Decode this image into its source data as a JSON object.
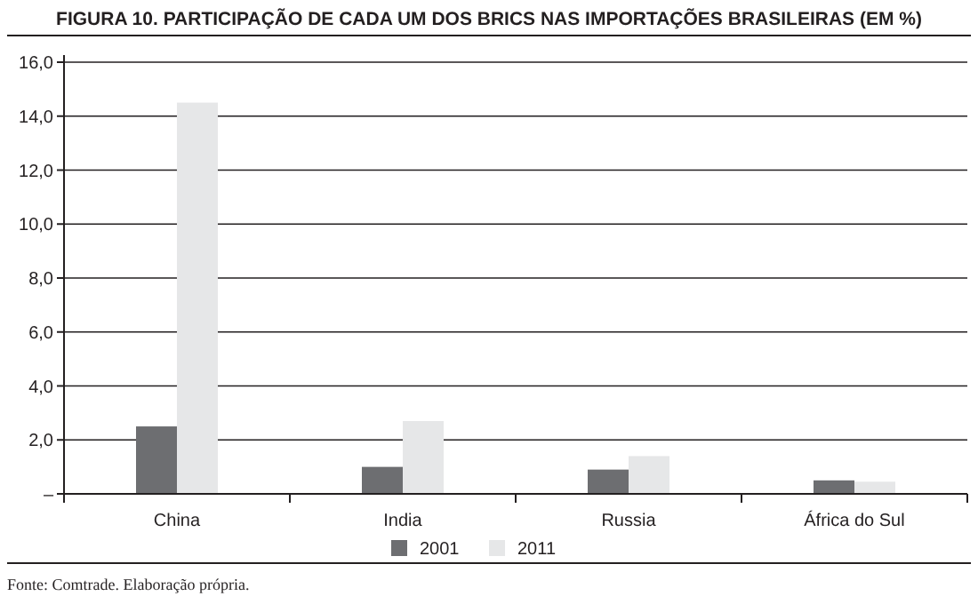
{
  "chart_data": {
    "type": "bar",
    "title": "FIGURA 10. PARTICIPAÇÃO DE CADA UM DOS BRICS NAS IMPORTAÇÕES BRASILEIRAS (EM %)",
    "categories": [
      "China",
      "India",
      "Russia",
      "África do Sul"
    ],
    "series": [
      {
        "name": "2001",
        "color": "#6d6e71",
        "values": [
          2.5,
          1.0,
          0.9,
          0.5
        ]
      },
      {
        "name": "2011",
        "color": "#e6e7e8",
        "values": [
          14.5,
          2.7,
          1.4,
          0.45
        ]
      }
    ],
    "ylim": [
      0,
      16
    ],
    "yticks": [
      {
        "value": 0,
        "label": "–"
      },
      {
        "value": 2,
        "label": "2,0"
      },
      {
        "value": 4,
        "label": "4,0"
      },
      {
        "value": 6,
        "label": "6,0"
      },
      {
        "value": 8,
        "label": "8,0"
      },
      {
        "value": 10,
        "label": "10,0"
      },
      {
        "value": 12,
        "label": "12,0"
      },
      {
        "value": 14,
        "label": "14,0"
      },
      {
        "value": 16,
        "label": "16,0"
      }
    ],
    "grid": "y",
    "legend": "bottom",
    "annotations": [
      "Fonte: Comtrade. Elaboração própria."
    ]
  }
}
